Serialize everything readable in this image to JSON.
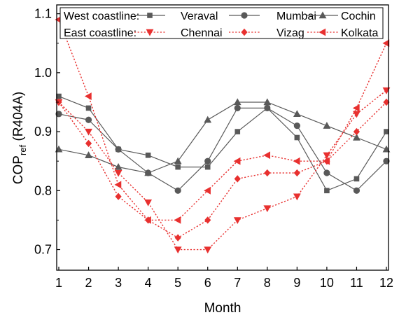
{
  "chart_data": {
    "type": "line",
    "xlabel": "Month",
    "ylabel": "COP",
    "ylabel_sub": "ref",
    "ylabel_suffix": " (R404A)",
    "x": [
      1,
      2,
      3,
      4,
      5,
      6,
      7,
      8,
      9,
      10,
      11,
      12
    ],
    "xlim": [
      1,
      12
    ],
    "ylim": [
      0.665,
      1.115
    ],
    "yticks": [
      0.7,
      0.8,
      0.9,
      1.0,
      1.1
    ],
    "ytick_labels": [
      "0.7",
      "0.8",
      "0.9",
      "1.0",
      "1.1"
    ],
    "xtick_labels": [
      "1",
      "2",
      "3",
      "4",
      "5",
      "6",
      "7",
      "8",
      "9",
      "10",
      "11",
      "12"
    ],
    "grid": false,
    "legend_position": "top",
    "legend_groups": [
      {
        "label": "West coastline:",
        "series": [
          0,
          1,
          2
        ]
      },
      {
        "label": "East coastline:",
        "series": [
          3,
          4,
          5
        ]
      }
    ],
    "series": [
      {
        "name": "Veraval",
        "group": "west",
        "color": "#595959",
        "line": "solid",
        "marker": "square",
        "values": [
          0.96,
          0.94,
          0.87,
          0.86,
          0.84,
          0.84,
          0.9,
          0.94,
          0.89,
          0.8,
          0.82,
          0.9
        ]
      },
      {
        "name": "Mumbai",
        "group": "west",
        "color": "#595959",
        "line": "solid",
        "marker": "circle",
        "values": [
          0.93,
          0.92,
          0.87,
          0.83,
          0.8,
          0.85,
          0.94,
          0.94,
          0.91,
          0.83,
          0.8,
          0.85
        ]
      },
      {
        "name": "Cochin",
        "group": "west",
        "color": "#595959",
        "line": "solid",
        "marker": "triangle-up",
        "values": [
          0.87,
          0.86,
          0.84,
          0.83,
          0.85,
          0.92,
          0.95,
          0.95,
          0.93,
          0.91,
          0.89,
          0.87
        ]
      },
      {
        "name": "Chennai",
        "group": "east",
        "color": "#e8302f",
        "line": "dotted",
        "marker": "triangle-down",
        "values": [
          0.95,
          0.9,
          0.83,
          0.78,
          0.7,
          0.7,
          0.75,
          0.77,
          0.79,
          0.86,
          0.93,
          0.97
        ]
      },
      {
        "name": "Vizag",
        "group": "east",
        "color": "#e8302f",
        "line": "dotted",
        "marker": "diamond",
        "values": [
          0.95,
          0.88,
          0.79,
          0.75,
          0.72,
          0.75,
          0.82,
          0.83,
          0.83,
          0.85,
          0.9,
          0.95
        ]
      },
      {
        "name": "Kolkata",
        "group": "east",
        "color": "#e8302f",
        "line": "dotted",
        "marker": "triangle-left",
        "values": [
          1.09,
          0.96,
          0.81,
          0.75,
          0.75,
          0.8,
          0.85,
          0.86,
          0.85,
          0.85,
          0.94,
          1.05
        ]
      }
    ]
  }
}
